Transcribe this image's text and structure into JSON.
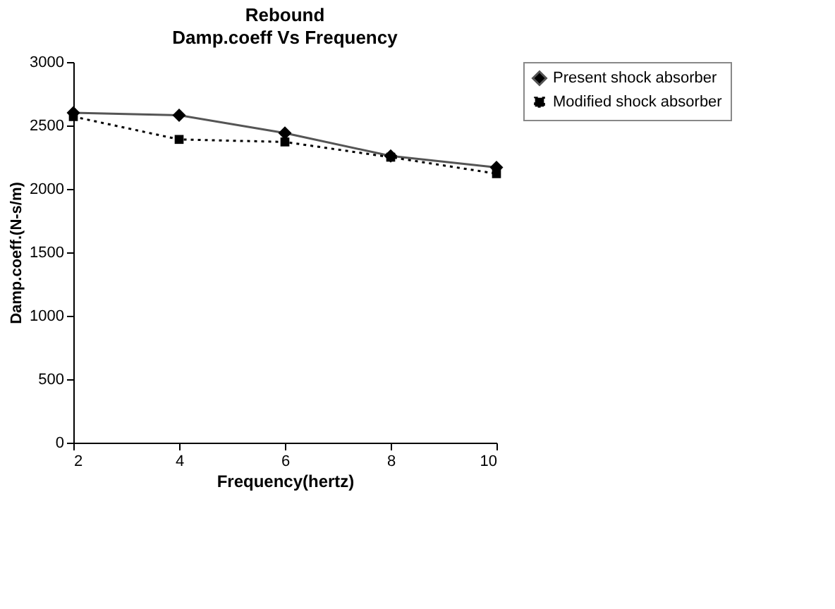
{
  "chart_data": {
    "type": "line",
    "title": "Rebound",
    "subtitle": "Damp.coeff Vs Frequency",
    "xlabel": "Frequency(hertz)",
    "ylabel": "Damp.coeff.(N-s/m)",
    "x": [
      2,
      4,
      6,
      8,
      10
    ],
    "series": [
      {
        "name": "Present shock absorber",
        "color": "#555555",
        "values": [
          2600,
          2580,
          2440,
          2260,
          2170
        ],
        "marker": "diamond",
        "line_style": "solid"
      },
      {
        "name": "Modified shock absorber",
        "color": "#000000",
        "values": [
          2570,
          2390,
          2370,
          2250,
          2120
        ],
        "marker": "square",
        "line_style": "dotted"
      }
    ],
    "xlim": [
      2,
      10
    ],
    "xticks": [
      2,
      4,
      6,
      8,
      10
    ],
    "ylim": [
      0,
      3000
    ],
    "yticks": [
      0,
      500,
      1000,
      1500,
      2000,
      2500,
      3000
    ],
    "grid": false,
    "legend": "right"
  }
}
